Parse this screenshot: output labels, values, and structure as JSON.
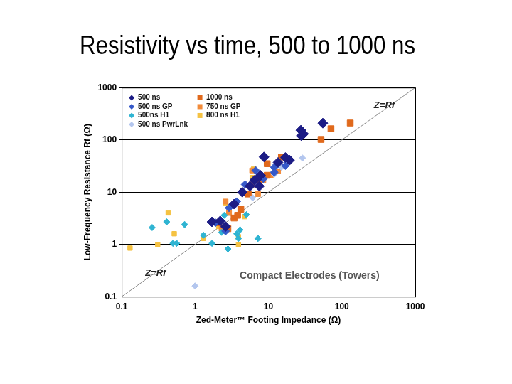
{
  "chart_data": {
    "type": "scatter",
    "title": "Resistivity vs time, 500 to 1000 ns",
    "x_label": "Zed-Meter™ Footing Impedance (Ω)",
    "y_label": "Low-Frequency Resistance Rf (Ω)",
    "log": true,
    "grid": "y",
    "legend": "upper left",
    "xlim": [
      0.1,
      1000
    ],
    "ylim": [
      0.1,
      1000
    ],
    "xticks": [
      0.1,
      1,
      10,
      100,
      1000
    ],
    "yticks": [
      0.1,
      1,
      10,
      100,
      1000
    ],
    "reference_line": {
      "x": [
        0.1,
        1000
      ],
      "y": [
        0.1,
        1000
      ]
    },
    "annotations": [
      "Z=Rf",
      "Z=Rf",
      "Compact Electrodes (Towers)"
    ],
    "series": [
      {
        "name": "500 ns",
        "color": "#1c1c85",
        "marker": "diamond",
        "x": [
          27.6,
          28,
          30,
          55,
          8.7,
          19.4,
          7.8,
          6.5,
          4.4,
          7.5,
          3.4,
          2.2,
          1.7,
          2.6,
          5.6,
          13.5,
          17
        ],
        "y": [
          153,
          120,
          130,
          209,
          47,
          41,
          21,
          17,
          10,
          13,
          5.9,
          2.8,
          2.7,
          2.2,
          13,
          37,
          46
        ]
      },
      {
        "name": "500 ns GP",
        "color": "#3558c8",
        "marker": "diamond",
        "x": [
          6.7,
          12,
          8.5,
          4.8,
          3.7,
          2.9,
          1.9,
          2.6,
          12,
          17
        ],
        "y": [
          26,
          24,
          18,
          14,
          6.6,
          5,
          2.6,
          1.8,
          30,
          32
        ]
      },
      {
        "name": "500ns H1",
        "color": "#2fb4d2",
        "marker": "diamond",
        "x": [
          0.26,
          0.41,
          0.5,
          0.72,
          0.56,
          1.7,
          2.3,
          2.5,
          2.8,
          4.1,
          5.0,
          3.7,
          7.2,
          3.9,
          1.3
        ],
        "y": [
          2.1,
          2.7,
          1.05,
          2.4,
          1.05,
          1.05,
          1.7,
          3.6,
          0.82,
          1.9,
          3.7,
          1.6,
          1.3,
          1.3,
          1.5
        ]
      },
      {
        "name": "500 ns PwrLnk",
        "color": "#b3c6ee",
        "marker": "diamond",
        "x": [
          1.0,
          6.1,
          15,
          29,
          12
        ],
        "y": [
          0.16,
          7.8,
          30,
          45,
          22
        ]
      },
      {
        "name": "1000 ns",
        "color": "#e0691c",
        "marker": "square",
        "x": [
          130,
          71,
          52,
          15,
          9.6,
          7.5,
          5.3,
          4.2,
          3.4,
          2.1,
          2.8,
          3.8,
          9.6
        ],
        "y": [
          210,
          163,
          102,
          47,
          21,
          17,
          9.2,
          4.7,
          3.2,
          2.6,
          2.0,
          3.6,
          35
        ]
      },
      {
        "name": "750 ns GP",
        "color": "#f28b3a",
        "marker": "square",
        "x": [
          10.7,
          8.5,
          6,
          6,
          2.6,
          2.9,
          2.3,
          13.5,
          7.2
        ],
        "y": [
          21,
          17,
          14,
          26,
          6.6,
          4,
          2,
          25,
          9.2
        ]
      },
      {
        "name": "800 ns H1",
        "color": "#f5c242",
        "marker": "square",
        "x": [
          0.13,
          0.31,
          0.43,
          0.52,
          1.3,
          1.7,
          2.1,
          3.9,
          3.9,
          4.7,
          6,
          6.3,
          12,
          2.6
        ],
        "y": [
          0.85,
          1.0,
          4.0,
          1.6,
          1.3,
          2.6,
          2.2,
          1.4,
          1.0,
          3.4,
          19,
          28,
          24,
          6.2
        ]
      }
    ]
  }
}
